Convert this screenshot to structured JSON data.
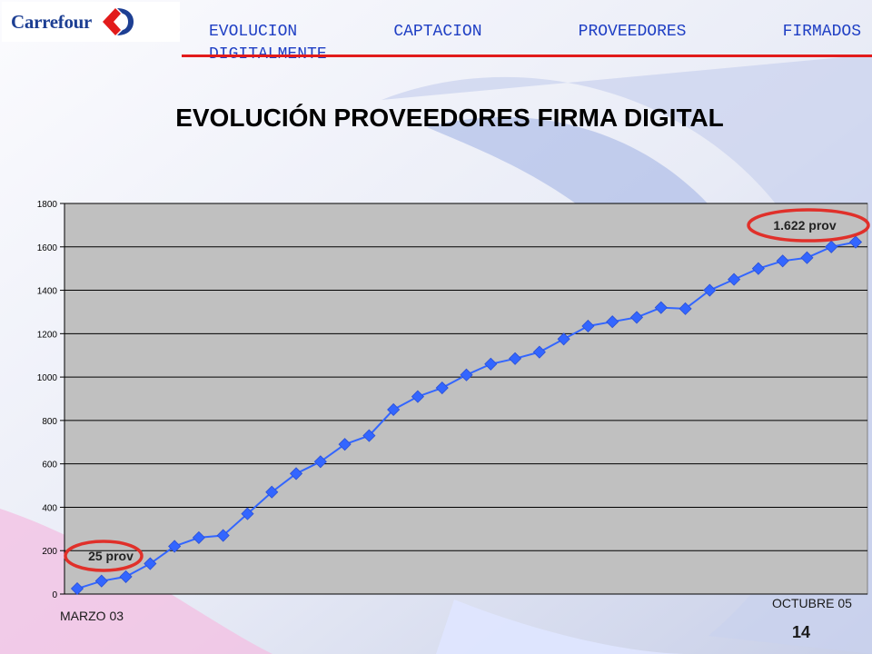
{
  "header": {
    "title_line1": "EVOLUCION CAPTACION PROVEEDORES FIRMADOS",
    "title_line2": "DIGITALMENTE"
  },
  "logo": {
    "text": "Carrefour",
    "icon": "carrefour-c-mark-icon"
  },
  "colors": {
    "header_text": "#1f3fc4",
    "header_rule": "#e21b1b",
    "plot_background": "#c0c0c0",
    "series_line": "#3366ff",
    "highlight_ellipse": "#e0302a",
    "logo_blue": "#1d3f93",
    "logo_red": "#e21b1b"
  },
  "chart_data": {
    "type": "line",
    "title": "EVOLUCIÓN PROVEEDORES FIRMA DIGITAL",
    "xlabel": "",
    "ylabel": "",
    "ylim": [
      0,
      1800
    ],
    "yticks": [
      0,
      200,
      400,
      600,
      800,
      1000,
      1200,
      1400,
      1600,
      1800
    ],
    "grid": true,
    "legend": "none",
    "series": [
      {
        "values": [
          25,
          60,
          80,
          140,
          220,
          260,
          270,
          370,
          470,
          555,
          610,
          690,
          730,
          850,
          910,
          950,
          1010,
          1060,
          1085,
          1115,
          1175,
          1235,
          1255,
          1275,
          1320,
          1315,
          1400,
          1450,
          1500,
          1535,
          1550,
          1600,
          1622
        ]
      }
    ],
    "annotations": [
      {
        "text": "25 prov",
        "point_index": 0
      },
      {
        "text": "1.622 prov",
        "point_index": 32
      }
    ],
    "start_label": "MARZO 03",
    "end_label": "OCTUBRE 05"
  },
  "footer": {
    "page_number": "14"
  }
}
